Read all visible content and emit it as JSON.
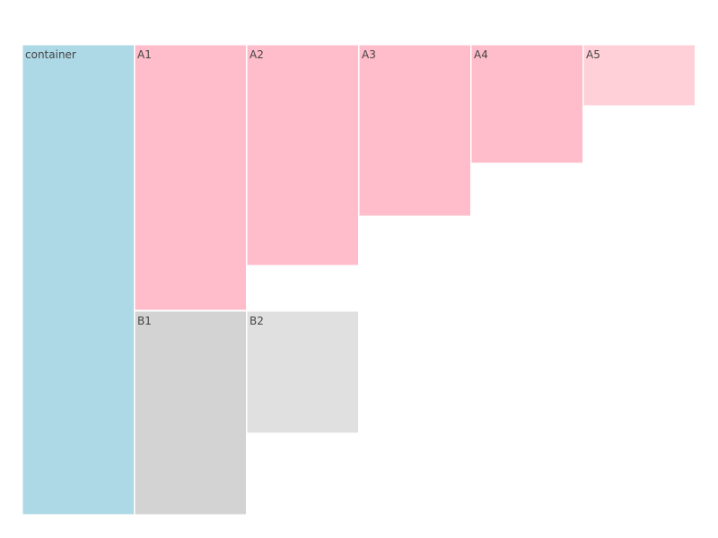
{
  "diagram": {
    "type": "icicle",
    "nodes": [
      {
        "id": "container",
        "label": "container",
        "color": "#add8e6"
      },
      {
        "id": "A1",
        "label": "A1",
        "color": "#ffbccb"
      },
      {
        "id": "A2",
        "label": "A2",
        "color": "#ffbccb"
      },
      {
        "id": "A3",
        "label": "A3",
        "color": "#ffbccb"
      },
      {
        "id": "A4",
        "label": "A4",
        "color": "#ffbccb"
      },
      {
        "id": "A5",
        "label": "A5",
        "color": "#ffd0d8"
      },
      {
        "id": "B1",
        "label": "B1",
        "color": "#d3d3d3"
      },
      {
        "id": "B2",
        "label": "B2",
        "color": "#e0e0e0"
      }
    ]
  }
}
